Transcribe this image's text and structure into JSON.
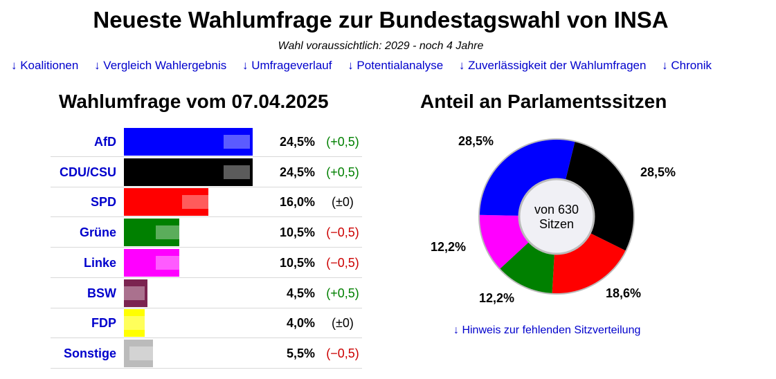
{
  "header": {
    "title": "Neueste Wahlumfrage zur Bundestagswahl von INSA",
    "subtitle": "Wahl voraussichtlich: 2029 - noch 4 Jahre"
  },
  "nav": {
    "links": [
      "↓ Koalitionen",
      "↓ Vergleich Wahlergebnis",
      "↓ Umfrageverlauf",
      "↓ Potentialanalyse",
      "↓ Zuverlässigkeit der Wahlumfragen",
      "↓ Chronik"
    ]
  },
  "chart_data": [
    {
      "type": "bar",
      "title": "Wahlumfrage vom 07.04.2025",
      "categories": [
        "AfD",
        "CDU/CSU",
        "SPD",
        "Grüne",
        "Linke",
        "BSW",
        "FDP",
        "Sonstige"
      ],
      "values": [
        24.5,
        24.5,
        16.0,
        10.5,
        10.5,
        4.5,
        4.0,
        5.5
      ],
      "previous_values": [
        24.0,
        24.0,
        16.0,
        11.0,
        11.0,
        4.0,
        4.0,
        6.0
      ],
      "value_labels": [
        "24,5%",
        "24,5%",
        "16,0%",
        "10,5%",
        "10,5%",
        "4,5%",
        "4,0%",
        "5,5%"
      ],
      "change_labels": [
        "(+0,5)",
        "(+0,5)",
        "(±0)",
        "(−0,5)",
        "(−0,5)",
        "(+0,5)",
        "(±0)",
        "(−0,5)"
      ],
      "change_colors": [
        "#008000",
        "#008000",
        "#000000",
        "#cc0000",
        "#cc0000",
        "#008000",
        "#000000",
        "#cc0000"
      ],
      "colors": [
        "#0000ff",
        "#000000",
        "#ff0000",
        "#008000",
        "#ff00ff",
        "#7b2350",
        "#ffff00",
        "#bbbbbb"
      ],
      "ylim": [
        0,
        40
      ]
    },
    {
      "type": "pie",
      "title": "Anteil an Parlamentssitzen",
      "labels": [
        "CDU/CSU",
        "SPD",
        "Grüne",
        "Linke",
        "AfD"
      ],
      "values": [
        28.5,
        18.6,
        12.2,
        12.2,
        28.5
      ],
      "value_labels": [
        "28,5%",
        "18,6%",
        "12,2%",
        "12,2%",
        "28,5%"
      ],
      "colors": [
        "#000000",
        "#ff0000",
        "#008000",
        "#ff00ff",
        "#0000ff"
      ],
      "center_text": [
        "von 630",
        "Sitzen"
      ]
    }
  ],
  "note": "↓ Hinweis zur fehlenden Sitzverteilung"
}
